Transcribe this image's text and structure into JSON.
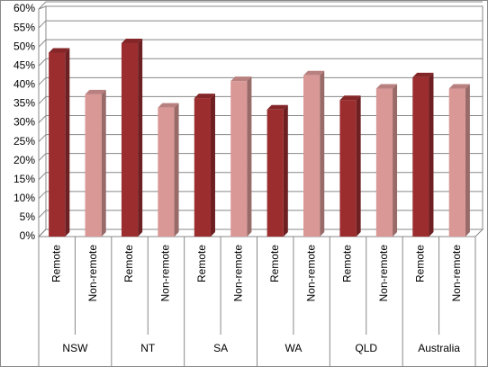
{
  "chart_data": {
    "type": "bar3d",
    "groups": [
      {
        "name": "NSW",
        "categories": [
          "Remote",
          "Non-remote"
        ],
        "values": [
          48.5,
          37.5
        ]
      },
      {
        "name": "NT",
        "categories": [
          "Remote",
          "Non-remote"
        ],
        "values": [
          51,
          34
        ]
      },
      {
        "name": "SA",
        "categories": [
          "Remote",
          "Non-remote"
        ],
        "values": [
          36.5,
          41
        ]
      },
      {
        "name": "WA",
        "categories": [
          "Remote",
          "Non-remote"
        ],
        "values": [
          33.5,
          42.5
        ]
      },
      {
        "name": "QLD",
        "categories": [
          "Remote",
          "Non-remote"
        ],
        "values": [
          36,
          39
        ]
      },
      {
        "name": "Australia",
        "categories": [
          "Remote",
          "Non-remote"
        ],
        "values": [
          42,
          39
        ]
      }
    ],
    "colors": [
      "#9b2d2f",
      "#d99795"
    ],
    "ylim": [
      0,
      60
    ],
    "yticks": [
      {
        "value": 0,
        "label": "0%"
      },
      {
        "value": 5,
        "label": "5%"
      },
      {
        "value": 10,
        "label": "10%"
      },
      {
        "value": 15,
        "label": "15%"
      },
      {
        "value": 20,
        "label": "20%"
      },
      {
        "value": 25,
        "label": "25%"
      },
      {
        "value": 30,
        "label": "30%"
      },
      {
        "value": 35,
        "label": "35%"
      },
      {
        "value": 40,
        "label": "40%"
      },
      {
        "value": 45,
        "label": "45%"
      },
      {
        "value": 50,
        "label": "50%"
      },
      {
        "value": 55,
        "label": "55%"
      },
      {
        "value": 60,
        "label": "60%"
      }
    ],
    "grid": true
  }
}
